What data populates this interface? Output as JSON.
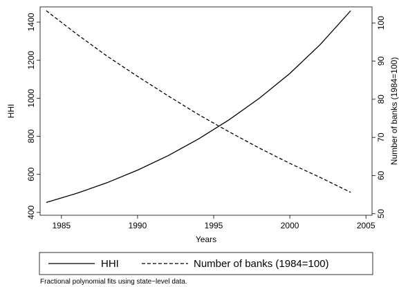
{
  "chart_data": {
    "type": "line",
    "title": "",
    "xlabel": "Years",
    "ylabel_left": "HHI",
    "ylabel_right": "Number of banks (1984=100)",
    "xlim": [
      1983.6,
      2005.4
    ],
    "ylim_left": [
      385,
      1480
    ],
    "ylim_right": [
      49.6,
      104.2
    ],
    "x_ticks": [
      1985,
      1990,
      1995,
      2000,
      2005
    ],
    "y_left_ticks": [
      400,
      600,
      800,
      1000,
      1200,
      1400
    ],
    "y_right_ticks": [
      50,
      60,
      70,
      80,
      90,
      100
    ],
    "grid": false,
    "legend_position": "bottom",
    "series": [
      {
        "name": "HHI",
        "axis": "left",
        "style": "solid",
        "x": [
          1984,
          1986,
          1988,
          1990,
          1992,
          1994,
          1996,
          1998,
          2000,
          2002,
          2004
        ],
        "values": [
          452,
          500,
          556,
          622,
          698,
          786,
          886,
          1000,
          1130,
          1282,
          1460
        ]
      },
      {
        "name": "Number of banks (1984=100)",
        "axis": "right",
        "style": "dashed",
        "x": [
          1984,
          1986,
          1988,
          1990,
          1992,
          1994,
          1996,
          1998,
          2000,
          2002,
          2004
        ],
        "values": [
          103.2,
          97.1,
          91.3,
          86.0,
          80.9,
          76.0,
          71.5,
          67.2,
          63.2,
          59.5,
          55.6
        ]
      }
    ],
    "note": "Fractional polynomial fits using state−level data."
  }
}
